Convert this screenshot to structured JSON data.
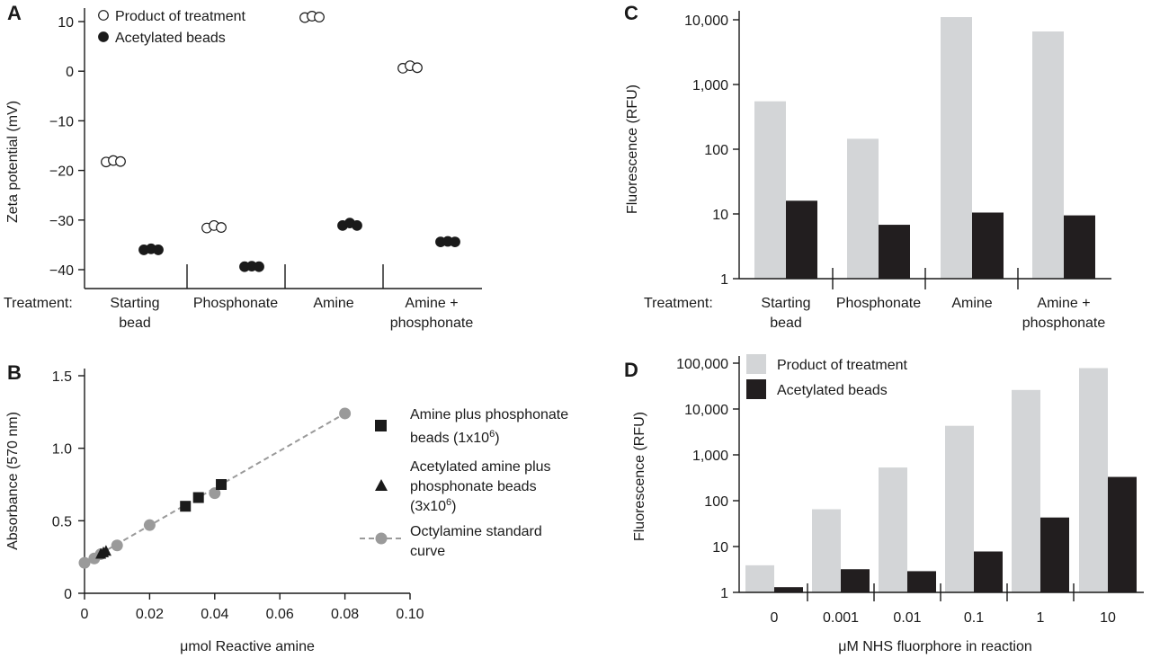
{
  "colors": {
    "product": "#d3d5d7",
    "acetylated": "#221e1f",
    "curve": "#9a9a9a",
    "ink": "#1a1a1a"
  },
  "chart_data": [
    {
      "id": "A",
      "panel_label": "A",
      "type": "scatter",
      "treatment_label": "Treatment:",
      "categories": [
        [
          "Starting",
          "bead"
        ],
        [
          "Phosphonate"
        ],
        [
          "Amine"
        ],
        [
          "Amine +",
          "phosphonate"
        ]
      ],
      "ylabel": "Zeta potential (mV)",
      "ylim": [
        -42,
        12
      ],
      "yticks": [
        {
          "v": 10,
          "label": "10"
        },
        {
          "v": 0,
          "label": "0"
        },
        {
          "v": -10,
          "label": "−10"
        },
        {
          "v": -20,
          "label": "−20"
        },
        {
          "v": -30,
          "label": "−30"
        },
        {
          "v": -40,
          "label": "−40"
        }
      ],
      "legend": [
        "Product of treatment",
        "Acetylated beads"
      ],
      "series": [
        {
          "name": "Product of treatment",
          "marker": "open-circle",
          "values": [
            [
              -18.3,
              -18.0,
              -18.2
            ],
            [
              -31.6,
              -31.1,
              -31.5
            ],
            [
              10.8,
              11.1,
              10.9
            ],
            [
              0.6,
              1.1,
              0.7
            ]
          ]
        },
        {
          "name": "Acetylated beads",
          "marker": "filled-circle",
          "values": [
            [
              -36.0,
              -35.8,
              -36.0
            ],
            [
              -39.4,
              -39.3,
              -39.4
            ],
            [
              -31.1,
              -30.6,
              -31.1
            ],
            [
              -34.4,
              -34.3,
              -34.4
            ]
          ]
        }
      ]
    },
    {
      "id": "B",
      "panel_label": "B",
      "type": "scatter",
      "xlabel": "μmol Reactive amine",
      "ylabel": "Absorbance (570 nm)",
      "xlim": [
        0,
        0.1
      ],
      "ylim": [
        0,
        1.5
      ],
      "xticks": [
        {
          "v": 0,
          "label": "0"
        },
        {
          "v": 0.02,
          "label": "0.02"
        },
        {
          "v": 0.04,
          "label": "0.04"
        },
        {
          "v": 0.06,
          "label": "0.06"
        },
        {
          "v": 0.08,
          "label": "0.08"
        },
        {
          "v": 0.1,
          "label": "0.10"
        }
      ],
      "yticks": [
        {
          "v": 0,
          "label": "0"
        },
        {
          "v": 0.5,
          "label": "0.5"
        },
        {
          "v": 1.0,
          "label": "1.0"
        },
        {
          "v": 1.5,
          "label": "1.5"
        }
      ],
      "legend": [
        {
          "lines": [
            "Amine plus phosphonate",
            "beads (1x10",
            "6",
            ")"
          ],
          "marker": "square"
        },
        {
          "lines": [
            "Acetylated amine plus",
            "phosphonate beads",
            "(3x10",
            "6",
            ")"
          ],
          "marker": "triangle"
        },
        {
          "lines": [
            "Octylamine standard",
            "curve"
          ],
          "marker": "dashed-circle"
        }
      ],
      "series": [
        {
          "name": "Octylamine standard curve",
          "marker": "gray-circle-dashed-line",
          "x": [
            0,
            0.003,
            0.005,
            0.01,
            0.02,
            0.04,
            0.08
          ],
          "y": [
            0.21,
            0.24,
            0.27,
            0.33,
            0.47,
            0.69,
            1.24
          ]
        },
        {
          "name": "Amine plus phosphonate beads",
          "marker": "square",
          "x": [
            0.031,
            0.035,
            0.042
          ],
          "y": [
            0.6,
            0.66,
            0.75
          ]
        },
        {
          "name": "Acetylated amine plus phosphonate beads",
          "marker": "triangle",
          "x": [
            0.005,
            0.0058,
            0.0066
          ],
          "y": [
            0.27,
            0.28,
            0.29
          ]
        }
      ]
    },
    {
      "id": "C",
      "panel_label": "C",
      "type": "bar",
      "yscale": "log",
      "ylabel": "Fluorescence (RFU)",
      "ylim": [
        1,
        10000
      ],
      "yticks": [
        {
          "v": 1,
          "label": "1"
        },
        {
          "v": 10,
          "label": "10"
        },
        {
          "v": 100,
          "label": "100"
        },
        {
          "v": 1000,
          "label": "1,000"
        },
        {
          "v": 10000,
          "label": "10,000"
        }
      ],
      "treatment_label": "Treatment:",
      "categories": [
        [
          "Starting",
          "bead"
        ],
        [
          "Phosphonate"
        ],
        [
          "Amine"
        ],
        [
          "Amine +",
          "phosphonate"
        ]
      ],
      "series": [
        {
          "name": "Product of treatment",
          "values": [
            550,
            145,
            11000,
            6600
          ]
        },
        {
          "name": "Acetylated beads",
          "values": [
            16,
            6.8,
            10.5,
            9.5
          ]
        }
      ]
    },
    {
      "id": "D",
      "panel_label": "D",
      "type": "bar",
      "yscale": "log",
      "ylabel": "Fluorescence (RFU)",
      "xlabel": "μM NHS fluorphore in reaction",
      "ylim": [
        1,
        100000
      ],
      "yticks": [
        {
          "v": 1,
          "label": "1"
        },
        {
          "v": 10,
          "label": "10"
        },
        {
          "v": 100,
          "label": "100"
        },
        {
          "v": 1000,
          "label": "1,000"
        },
        {
          "v": 10000,
          "label": "10,000"
        },
        {
          "v": 100000,
          "label": "100,000"
        }
      ],
      "categories": [
        "0",
        "0.001",
        "0.01",
        "0.1",
        "1",
        "10"
      ],
      "legend": [
        "Product of treatment",
        "Acetylated beads"
      ],
      "series": [
        {
          "name": "Product of treatment",
          "values": [
            3.9,
            65,
            530,
            4300,
            26000,
            78000
          ]
        },
        {
          "name": "Acetylated beads",
          "values": [
            1.3,
            3.2,
            2.9,
            7.8,
            43,
            330
          ]
        }
      ]
    }
  ]
}
